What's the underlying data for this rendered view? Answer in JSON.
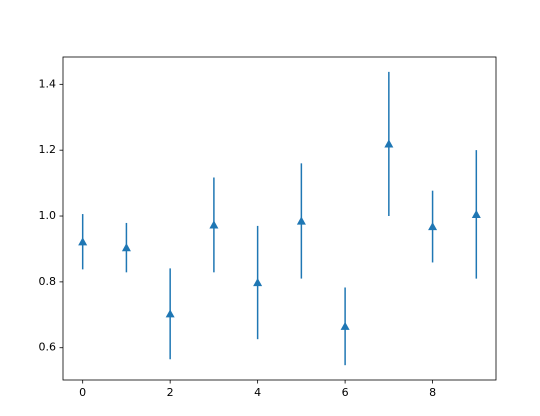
{
  "chart_data": {
    "type": "errorbar",
    "x": [
      0,
      1,
      2,
      3,
      4,
      5,
      6,
      7,
      8,
      9
    ],
    "values": [
      0.922,
      0.904,
      0.703,
      0.973,
      0.798,
      0.985,
      0.665,
      1.219,
      0.968,
      1.005
    ],
    "errors": [
      0.084,
      0.075,
      0.138,
      0.144,
      0.172,
      0.175,
      0.118,
      0.219,
      0.109,
      0.195
    ],
    "color": "#1f77b4",
    "marker": "triangle",
    "xlim": [
      -0.45,
      9.45
    ],
    "xticks": [
      0,
      2,
      4,
      6,
      8
    ],
    "ylim": [
      0.502,
      1.483
    ],
    "yticks": [
      0.6,
      0.8,
      {
        "value": 1,
        "label": "1.0"
      },
      1.2,
      1.4
    ]
  }
}
